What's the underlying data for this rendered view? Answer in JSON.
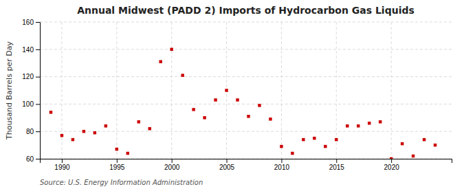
{
  "chart_data": {
    "type": "scatter",
    "title": "Annual Midwest (PADD 2) Imports of Hydrocarbon Gas Liquids",
    "ylabel": "Thousand Barrels per Day",
    "source": "Source: U.S. Energy Information Administration",
    "x": [
      1989,
      1990,
      1991,
      1992,
      1993,
      1994,
      1995,
      1996,
      1997,
      1998,
      1999,
      2000,
      2001,
      2002,
      2003,
      2004,
      2005,
      2006,
      2007,
      2008,
      2009,
      2010,
      2011,
      2012,
      2013,
      2014,
      2015,
      2016,
      2017,
      2018,
      2019,
      2020,
      2021,
      2022,
      2023,
      2024
    ],
    "values": [
      94,
      77,
      74,
      80,
      79,
      84,
      67,
      64,
      87,
      82,
      131,
      140,
      121,
      96,
      90,
      103,
      110,
      103,
      91,
      99,
      89,
      69,
      64,
      74,
      75,
      69,
      74,
      84,
      84,
      86,
      87,
      60,
      71,
      62,
      74,
      70
    ],
    "color": "#cc0000",
    "marker": "square",
    "xlim": [
      1988.0,
      2025.5
    ],
    "xticks": [
      1990,
      1995,
      2000,
      2005,
      2010,
      2015,
      2020
    ],
    "ylim": [
      60,
      160
    ],
    "yticks": [
      60,
      80,
      100,
      120,
      140,
      160
    ],
    "grid": true
  }
}
